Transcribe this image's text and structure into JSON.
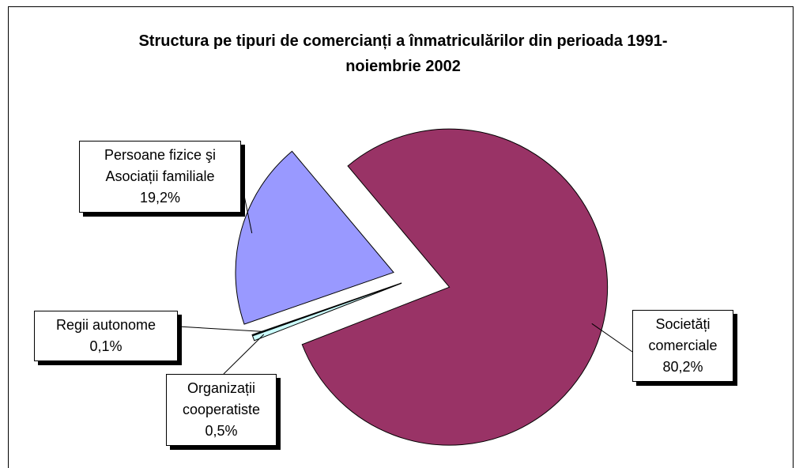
{
  "chart_data": {
    "type": "pie",
    "title": "Structura pe tipuri de comercianți a înmatriculărilor din perioada 1991- noiembrie  2002",
    "categories": [
      "Societăți comerciale",
      "Organizații cooperatiste",
      "Regii autonome",
      "Persoane fizice şi Asociații familiale"
    ],
    "values": [
      80.2,
      0.5,
      0.1,
      19.2
    ],
    "value_labels": [
      "80,2%",
      "0,5%",
      "0,1%",
      "19,2%"
    ],
    "colors": [
      "#993366",
      "#ccffff",
      "#006666",
      "#9999ff"
    ]
  }
}
